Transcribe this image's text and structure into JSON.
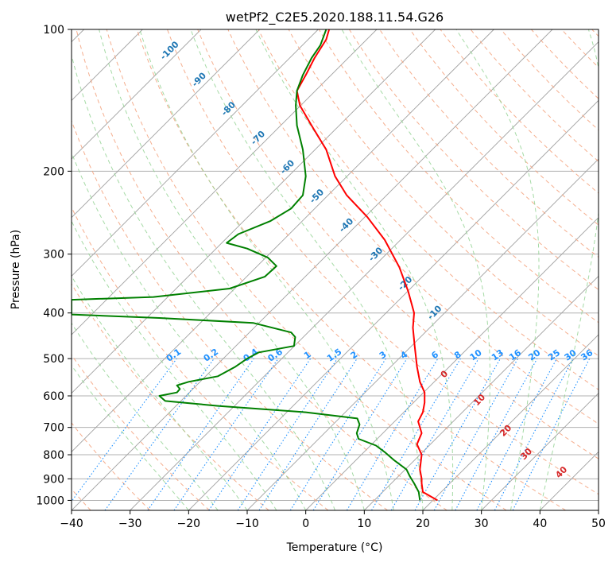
{
  "chart_data": {
    "type": "line",
    "title": "wetPf2_C2E5.2020.188.11.54.G26",
    "xlabel": "Temperature (°C)",
    "ylabel": "Pressure (hPa)",
    "xlim": [
      -40,
      50
    ],
    "ylim": [
      1050,
      100
    ],
    "y_scale": "log",
    "x_ticks": [
      -40,
      -30,
      -20,
      -10,
      0,
      10,
      20,
      30,
      40,
      50
    ],
    "x_tick_labels": [
      "−40",
      "−30",
      "−20",
      "−10",
      "0",
      "10",
      "20",
      "30",
      "40",
      "50"
    ],
    "y_ticks": [
      100,
      200,
      300,
      400,
      500,
      600,
      700,
      800,
      900,
      1000
    ],
    "y_tick_labels": [
      "100",
      "200",
      "300",
      "400",
      "500",
      "600",
      "700",
      "800",
      "900",
      "1000"
    ],
    "grid": true,
    "legend": "none",
    "series": [
      {
        "color": "#ff0000",
        "points": [
          [
            22.5,
            1000
          ],
          [
            20.0,
            960
          ],
          [
            19.8,
            920
          ],
          [
            19.8,
            900
          ],
          [
            19.5,
            860
          ],
          [
            19.8,
            800
          ],
          [
            19.0,
            760
          ],
          [
            19.8,
            720
          ],
          [
            19.2,
            680
          ],
          [
            20.0,
            650
          ],
          [
            20.3,
            620
          ],
          [
            20.3,
            590
          ],
          [
            19.5,
            560
          ],
          [
            19.0,
            520
          ],
          [
            18.6,
            470
          ],
          [
            18.3,
            430
          ],
          [
            18.5,
            400
          ],
          [
            17.5,
            360
          ],
          [
            16.0,
            320
          ],
          [
            13.5,
            280
          ],
          [
            10.5,
            250
          ],
          [
            7.0,
            225
          ],
          [
            5.0,
            205
          ],
          [
            3.5,
            180
          ],
          [
            1.0,
            160
          ],
          [
            -1.0,
            145
          ],
          [
            -1.5,
            135
          ],
          [
            0.0,
            125
          ],
          [
            1.5,
            115
          ],
          [
            3.5,
            105
          ],
          [
            4.0,
            100
          ]
        ]
      },
      {
        "color": "#008000",
        "points": [
          [
            19.5,
            1000
          ],
          [
            19.3,
            960
          ],
          [
            18.5,
            920
          ],
          [
            17.8,
            890
          ],
          [
            17.2,
            860
          ],
          [
            15.0,
            820
          ],
          [
            13.5,
            790
          ],
          [
            12.0,
            765
          ],
          [
            9.0,
            740
          ],
          [
            8.7,
            720
          ],
          [
            9.2,
            690
          ],
          [
            8.8,
            670
          ],
          [
            0.0,
            650
          ],
          [
            -15.0,
            630
          ],
          [
            -24.0,
            615
          ],
          [
            -25.0,
            600
          ],
          [
            -22.0,
            590
          ],
          [
            -21.5,
            580
          ],
          [
            -22.0,
            570
          ],
          [
            -20.0,
            560
          ],
          [
            -15.0,
            545
          ],
          [
            -12.0,
            520
          ],
          [
            -10.0,
            500
          ],
          [
            -8.0,
            485
          ],
          [
            -2.0,
            470
          ],
          [
            -1.8,
            450
          ],
          [
            -2.5,
            440
          ],
          [
            -9.0,
            420
          ],
          [
            -25.0,
            410
          ],
          [
            -40.0,
            403
          ],
          [
            -40.0,
            375
          ],
          [
            -26.0,
            370
          ],
          [
            -13.0,
            355
          ],
          [
            -7.0,
            335
          ],
          [
            -5.0,
            318
          ],
          [
            -6.5,
            305
          ],
          [
            -10.0,
            292
          ],
          [
            -13.5,
            284
          ],
          [
            -11.5,
            272
          ],
          [
            -6.0,
            255
          ],
          [
            -2.5,
            240
          ],
          [
            -0.5,
            225
          ],
          [
            0.0,
            205
          ],
          [
            -0.5,
            180
          ],
          [
            -1.5,
            160
          ],
          [
            -1.7,
            145
          ],
          [
            -1.5,
            135
          ],
          [
            -0.5,
            125
          ],
          [
            1.0,
            115
          ],
          [
            2.5,
            108
          ],
          [
            3.5,
            100
          ]
        ]
      }
    ],
    "dry_adiabat_labels": [
      "-100",
      "-90",
      "-80",
      "-70",
      "-60",
      "-50",
      "-40",
      "-30",
      "-20",
      "-10"
    ],
    "mixing_ratio_labels": [
      "0.1",
      "0.2",
      "0.4",
      "0.6",
      "1",
      "1.5",
      "2",
      "3",
      "4",
      "6",
      "8",
      "10",
      "13",
      "16",
      "20",
      "25",
      "30",
      "36"
    ],
    "moist_adiabat_labels": [
      "0",
      "10",
      "20",
      "30",
      "40"
    ],
    "colors": {
      "temperature": "#ff0000",
      "dewpoint": "#008000",
      "grid": "#b0b0b0",
      "isotherm": "#a0a0a0",
      "dry_adiabat": "#f4a582",
      "moist_adiabat": "#8fd18f",
      "mixing_ratio": "#1e90ff",
      "dry_adiabat_label": "#1f77b4",
      "mixing_ratio_label": "#1e90ff",
      "moist_adiabat_label": "#d62728"
    }
  }
}
